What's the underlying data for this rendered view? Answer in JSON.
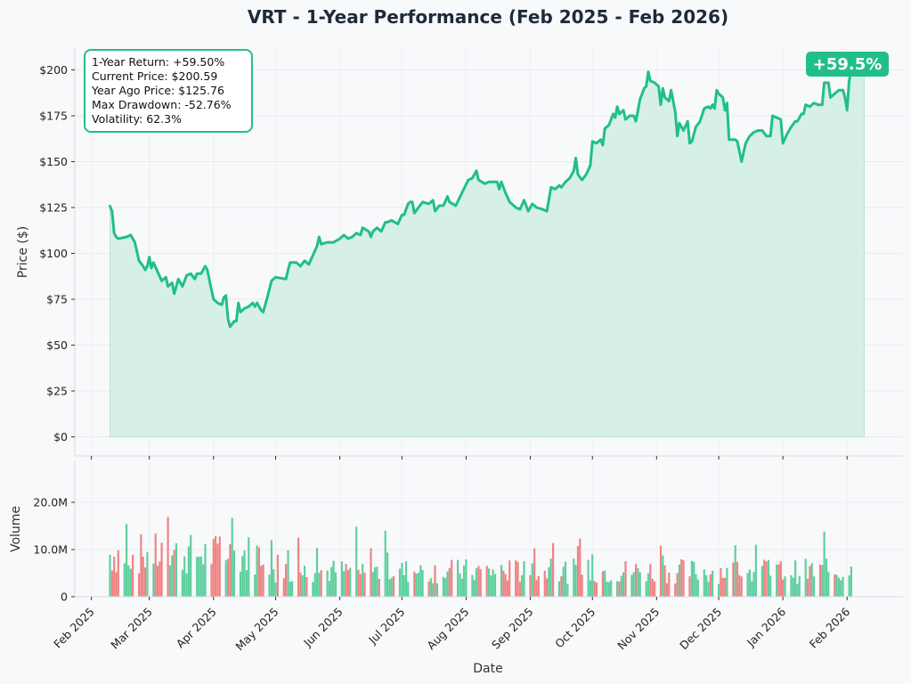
{
  "chart_data": {
    "type": "line",
    "title": "VRT - 1-Year Performance (Feb 2025 - Feb 2026)",
    "xlabel": "Date",
    "ylabel": "Price ($)",
    "volume_ylabel": "Volume",
    "ylim": [
      0,
      210
    ],
    "volume_ylim": [
      0,
      28000000
    ],
    "price_ticks": [
      "$0",
      "$25",
      "$50",
      "$75",
      "$100",
      "$125",
      "$150",
      "$175",
      "$200"
    ],
    "price_tick_values": [
      0,
      25,
      50,
      75,
      100,
      125,
      150,
      175,
      200
    ],
    "volume_ticks": [
      "0",
      "10.0M",
      "20.0M"
    ],
    "volume_tick_values": [
      0,
      10000000,
      20000000
    ],
    "x_ticks": [
      "Feb 2025",
      "Mar 2025",
      "Apr 2025",
      "May 2025",
      "Jun 2025",
      "Jul 2025",
      "Aug 2025",
      "Sep 2025",
      "Oct 2025",
      "Nov 2025",
      "Dec 2025",
      "Jan 2026",
      "Feb 2026"
    ],
    "x_tick_dates": [
      "2025-02-01",
      "2025-03-01",
      "2025-04-01",
      "2025-05-01",
      "2025-06-01",
      "2025-07-01",
      "2025-08-01",
      "2025-09-01",
      "2025-10-01",
      "2025-11-01",
      "2025-12-01",
      "2026-01-01",
      "2026-02-01"
    ],
    "x_range": [
      "2025-01-24",
      "2026-02-28"
    ],
    "grid": true,
    "line_color": "#21bf87",
    "fill_color": "#d5f0e6",
    "up_volume_color": "#5fcf9f",
    "down_volume_color": "#ee8484",
    "badge": "+59.5%",
    "stats": [
      "1-Year Return: +59.50%",
      "Current Price: $200.59",
      "Year Ago Price: $125.76",
      "Max Drawdown: -52.76%",
      "Volatility: 62.3%"
    ],
    "price_series": [
      [
        "2025-02-10",
        125.8
      ],
      [
        "2025-02-11",
        123
      ],
      [
        "2025-02-12",
        111
      ],
      [
        "2025-02-13",
        109
      ],
      [
        "2025-02-14",
        108
      ],
      [
        "2025-02-18",
        109
      ],
      [
        "2025-02-20",
        110
      ],
      [
        "2025-02-22",
        106
      ],
      [
        "2025-02-24",
        96
      ],
      [
        "2025-02-26",
        93
      ],
      [
        "2025-02-27",
        91
      ],
      [
        "2025-02-28",
        93
      ],
      [
        "2025-03-01",
        98
      ],
      [
        "2025-03-02",
        92
      ],
      [
        "2025-03-03",
        95
      ],
      [
        "2025-03-05",
        90
      ],
      [
        "2025-03-07",
        85
      ],
      [
        "2025-03-09",
        87
      ],
      [
        "2025-03-10",
        82
      ],
      [
        "2025-03-12",
        84
      ],
      [
        "2025-03-13",
        78
      ],
      [
        "2025-03-15",
        86
      ],
      [
        "2025-03-17",
        82
      ],
      [
        "2025-03-19",
        88
      ],
      [
        "2025-03-21",
        89
      ],
      [
        "2025-03-23",
        86
      ],
      [
        "2025-03-24",
        89
      ],
      [
        "2025-03-26",
        89
      ],
      [
        "2025-03-28",
        93
      ],
      [
        "2025-03-29",
        91
      ],
      [
        "2025-03-31",
        80
      ],
      [
        "2025-04-01",
        75
      ],
      [
        "2025-04-03",
        73
      ],
      [
        "2025-04-05",
        72
      ],
      [
        "2025-04-06",
        76
      ],
      [
        "2025-04-07",
        77
      ],
      [
        "2025-04-08",
        64
      ],
      [
        "2025-04-09",
        60
      ],
      [
        "2025-04-11",
        63
      ],
      [
        "2025-04-12",
        63
      ],
      [
        "2025-04-13",
        73
      ],
      [
        "2025-04-14",
        68
      ],
      [
        "2025-04-16",
        70
      ],
      [
        "2025-04-18",
        71
      ],
      [
        "2025-04-20",
        73
      ],
      [
        "2025-04-21",
        71
      ],
      [
        "2025-04-22",
        73
      ],
      [
        "2025-04-24",
        69
      ],
      [
        "2025-04-25",
        68
      ],
      [
        "2025-04-27",
        76
      ],
      [
        "2025-04-29",
        85
      ],
      [
        "2025-05-01",
        87
      ],
      [
        "2025-05-06",
        86
      ],
      [
        "2025-05-07",
        91
      ],
      [
        "2025-05-08",
        95
      ],
      [
        "2025-05-11",
        95
      ],
      [
        "2025-05-13",
        93
      ],
      [
        "2025-05-15",
        96
      ],
      [
        "2025-05-17",
        94
      ],
      [
        "2025-05-19",
        99
      ],
      [
        "2025-05-21",
        104
      ],
      [
        "2025-05-22",
        109
      ],
      [
        "2025-05-23",
        105
      ],
      [
        "2025-05-26",
        106
      ],
      [
        "2025-05-29",
        106
      ],
      [
        "2025-06-01",
        108
      ],
      [
        "2025-06-03",
        110
      ],
      [
        "2025-06-05",
        108
      ],
      [
        "2025-06-07",
        109
      ],
      [
        "2025-06-09",
        111
      ],
      [
        "2025-06-11",
        110
      ],
      [
        "2025-06-12",
        114
      ],
      [
        "2025-06-15",
        112
      ],
      [
        "2025-06-16",
        109
      ],
      [
        "2025-06-17",
        112
      ],
      [
        "2025-06-19",
        114
      ],
      [
        "2025-06-21",
        112
      ],
      [
        "2025-06-23",
        117
      ],
      [
        "2025-06-24",
        117
      ],
      [
        "2025-06-26",
        118
      ],
      [
        "2025-06-29",
        116
      ],
      [
        "2025-07-01",
        121
      ],
      [
        "2025-07-02",
        121
      ],
      [
        "2025-07-04",
        127
      ],
      [
        "2025-07-05",
        128
      ],
      [
        "2025-07-06",
        128
      ],
      [
        "2025-07-07",
        122
      ],
      [
        "2025-07-09",
        125
      ],
      [
        "2025-07-11",
        128
      ],
      [
        "2025-07-14",
        127
      ],
      [
        "2025-07-16",
        129
      ],
      [
        "2025-07-17",
        123
      ],
      [
        "2025-07-19",
        126
      ],
      [
        "2025-07-21",
        126
      ],
      [
        "2025-07-23",
        131
      ],
      [
        "2025-07-24",
        128
      ],
      [
        "2025-07-27",
        126
      ],
      [
        "2025-07-30",
        133
      ],
      [
        "2025-08-02",
        140
      ],
      [
        "2025-08-04",
        141
      ],
      [
        "2025-08-06",
        145
      ],
      [
        "2025-08-07",
        140
      ],
      [
        "2025-08-10",
        138
      ],
      [
        "2025-08-12",
        139
      ],
      [
        "2025-08-14",
        139
      ],
      [
        "2025-08-16",
        139
      ],
      [
        "2025-08-17",
        135
      ],
      [
        "2025-08-18",
        139
      ],
      [
        "2025-08-20",
        133
      ],
      [
        "2025-08-22",
        128
      ],
      [
        "2025-08-25",
        125
      ],
      [
        "2025-08-27",
        124
      ],
      [
        "2025-08-29",
        129
      ],
      [
        "2025-08-31",
        123
      ],
      [
        "2025-09-02",
        127
      ],
      [
        "2025-09-04",
        125
      ],
      [
        "2025-09-07",
        124
      ],
      [
        "2025-09-09",
        123
      ],
      [
        "2025-09-11",
        136
      ],
      [
        "2025-09-13",
        135
      ],
      [
        "2025-09-15",
        137
      ],
      [
        "2025-09-16",
        136
      ],
      [
        "2025-09-18",
        139
      ],
      [
        "2025-09-20",
        141
      ],
      [
        "2025-09-22",
        145
      ],
      [
        "2025-09-23",
        152
      ],
      [
        "2025-09-24",
        143
      ],
      [
        "2025-09-26",
        140
      ],
      [
        "2025-09-28",
        143
      ],
      [
        "2025-09-30",
        148
      ],
      [
        "2025-10-01",
        161
      ],
      [
        "2025-10-03",
        160
      ],
      [
        "2025-10-05",
        162
      ],
      [
        "2025-10-06",
        159
      ],
      [
        "2025-10-07",
        168
      ],
      [
        "2025-10-09",
        170
      ],
      [
        "2025-10-11",
        176
      ],
      [
        "2025-10-12",
        174
      ],
      [
        "2025-10-13",
        180
      ],
      [
        "2025-10-14",
        176
      ],
      [
        "2025-10-16",
        178
      ],
      [
        "2025-10-17",
        173
      ],
      [
        "2025-10-19",
        175
      ],
      [
        "2025-10-21",
        175
      ],
      [
        "2025-10-22",
        172
      ],
      [
        "2025-10-24",
        184
      ],
      [
        "2025-10-26",
        190
      ],
      [
        "2025-10-27",
        191
      ],
      [
        "2025-10-28",
        199
      ],
      [
        "2025-10-29",
        194
      ],
      [
        "2025-10-31",
        193
      ],
      [
        "2025-11-02",
        191
      ],
      [
        "2025-11-03",
        181
      ],
      [
        "2025-11-04",
        190
      ],
      [
        "2025-11-05",
        185
      ],
      [
        "2025-11-07",
        183
      ],
      [
        "2025-11-08",
        189
      ],
      [
        "2025-11-10",
        177
      ],
      [
        "2025-11-11",
        164
      ],
      [
        "2025-11-12",
        171
      ],
      [
        "2025-11-14",
        167
      ],
      [
        "2025-11-16",
        172
      ],
      [
        "2025-11-17",
        160
      ],
      [
        "2025-11-18",
        161
      ],
      [
        "2025-11-20",
        169
      ],
      [
        "2025-11-22",
        172
      ],
      [
        "2025-11-24",
        179
      ],
      [
        "2025-11-26",
        180
      ],
      [
        "2025-11-27",
        179
      ],
      [
        "2025-11-28",
        181
      ],
      [
        "2025-11-29",
        179
      ],
      [
        "2025-11-30",
        189
      ],
      [
        "2025-12-01",
        187
      ],
      [
        "2025-12-03",
        185
      ],
      [
        "2025-12-04",
        178
      ],
      [
        "2025-12-05",
        182
      ],
      [
        "2025-12-06",
        162
      ],
      [
        "2025-12-09",
        162
      ],
      [
        "2025-12-10",
        161
      ],
      [
        "2025-12-12",
        150
      ],
      [
        "2025-12-14",
        160
      ],
      [
        "2025-12-16",
        164
      ],
      [
        "2025-12-18",
        166
      ],
      [
        "2025-12-20",
        167
      ],
      [
        "2025-12-22",
        167
      ],
      [
        "2025-12-24",
        164
      ],
      [
        "2025-12-26",
        164
      ],
      [
        "2025-12-27",
        175
      ],
      [
        "2025-12-29",
        174
      ],
      [
        "2025-12-31",
        173
      ],
      [
        "2026-01-01",
        160
      ],
      [
        "2026-01-03",
        165
      ],
      [
        "2026-01-05",
        169
      ],
      [
        "2026-01-07",
        172
      ],
      [
        "2026-01-08",
        172
      ],
      [
        "2026-01-10",
        176
      ],
      [
        "2026-01-11",
        176
      ],
      [
        "2026-01-12",
        181
      ],
      [
        "2026-01-14",
        180
      ],
      [
        "2026-01-16",
        182
      ],
      [
        "2026-01-18",
        181
      ],
      [
        "2026-01-20",
        181
      ],
      [
        "2026-01-21",
        193
      ],
      [
        "2026-01-23",
        193
      ],
      [
        "2026-01-24",
        185
      ],
      [
        "2026-01-26",
        187
      ],
      [
        "2026-01-28",
        189
      ],
      [
        "2026-01-30",
        189
      ],
      [
        "2026-01-31",
        185
      ],
      [
        "2026-02-01",
        178
      ],
      [
        "2026-02-02",
        194
      ],
      [
        "2026-02-03",
        200.6
      ]
    ]
  }
}
